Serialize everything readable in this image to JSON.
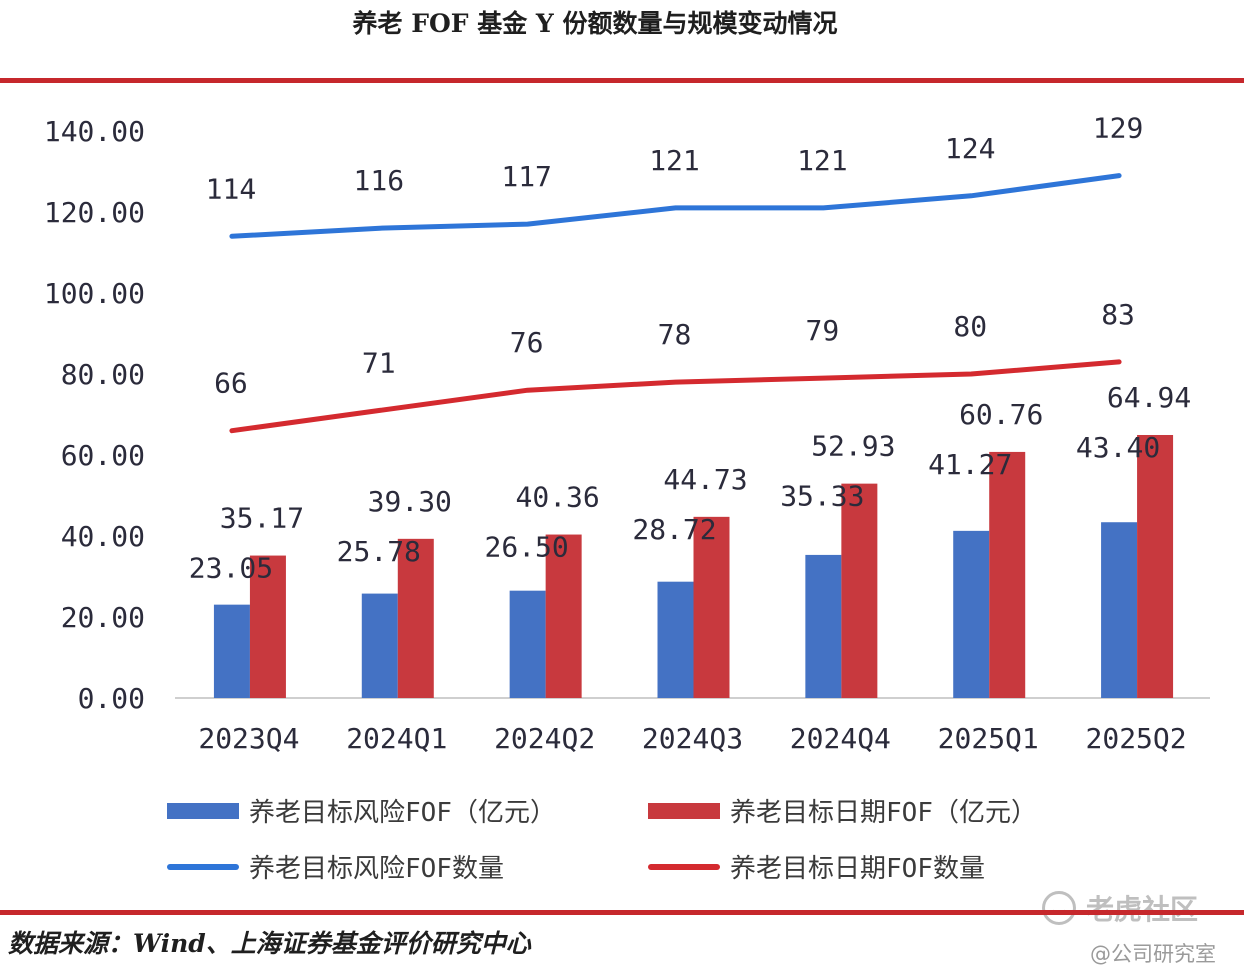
{
  "header": {
    "title": "养老 FOF 基金 Y 份额数量与规模变动情况"
  },
  "chart_data": {
    "type": "bar",
    "categories": [
      "2023Q4",
      "2024Q1",
      "2024Q2",
      "2024Q3",
      "2024Q4",
      "2025Q1",
      "2025Q2"
    ],
    "y_ticks": [
      "0.00",
      "20.00",
      "40.00",
      "60.00",
      "80.00",
      "100.00",
      "120.00",
      "140.00"
    ],
    "ylim": [
      0,
      140
    ],
    "series": [
      {
        "name": "养老目标风险FOF（亿元）",
        "kind": "bar",
        "color": "#4472c4",
        "values": [
          23.05,
          25.78,
          26.5,
          28.72,
          35.33,
          41.27,
          43.4
        ],
        "labels": [
          "23.05",
          "25.78",
          "26.50",
          "28.72",
          "35.33",
          "41.27",
          "43.40"
        ]
      },
      {
        "name": "养老目标日期FOF（亿元）",
        "kind": "bar",
        "color": "#c8393e",
        "values": [
          35.17,
          39.3,
          40.36,
          44.73,
          52.93,
          60.76,
          64.94
        ],
        "labels": [
          "35.17",
          "39.30",
          "40.36",
          "44.73",
          "52.93",
          "60.76",
          "64.94"
        ]
      },
      {
        "name": "养老目标风险FOF数量",
        "kind": "line",
        "color": "#2e75d8",
        "values": [
          114,
          116,
          117,
          121,
          121,
          124,
          129
        ],
        "labels": [
          "114",
          "116",
          "117",
          "121",
          "121",
          "124",
          "129"
        ]
      },
      {
        "name": "养老目标日期FOF数量",
        "kind": "line",
        "color": "#d42a2f",
        "values": [
          66,
          71,
          76,
          78,
          79,
          80,
          83
        ],
        "labels": [
          "66",
          "71",
          "76",
          "78",
          "79",
          "80",
          "83"
        ]
      }
    ]
  },
  "legend": {
    "items": [
      {
        "label": "养老目标风险FOF（亿元）"
      },
      {
        "label": "养老目标日期FOF（亿元）"
      },
      {
        "label": "养老目标风险FOF数量"
      },
      {
        "label": "养老目标日期FOF数量"
      }
    ]
  },
  "footer": {
    "source": "数据来源：Wind、上海证券基金评价研究中心"
  },
  "watermark": {
    "brand": "老虎社区",
    "sub": "@公司研究室"
  },
  "colors": {
    "accent_rule": "#c6282c"
  }
}
